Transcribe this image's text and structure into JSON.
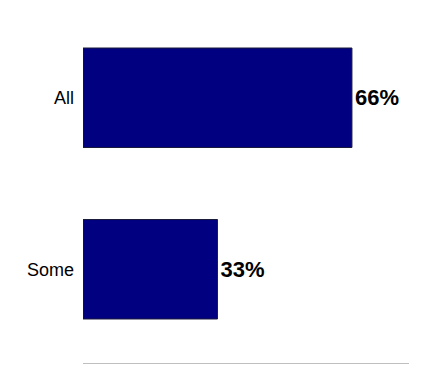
{
  "chart_data": {
    "type": "bar",
    "orientation": "horizontal",
    "categories": [
      "All",
      "Some"
    ],
    "values": [
      66,
      33
    ],
    "value_labels": [
      "66%",
      "33%"
    ],
    "color": "#000080",
    "data_labels": true,
    "tick_labels": "y",
    "grid": false,
    "xlim": [
      0,
      80
    ],
    "xticks": []
  }
}
